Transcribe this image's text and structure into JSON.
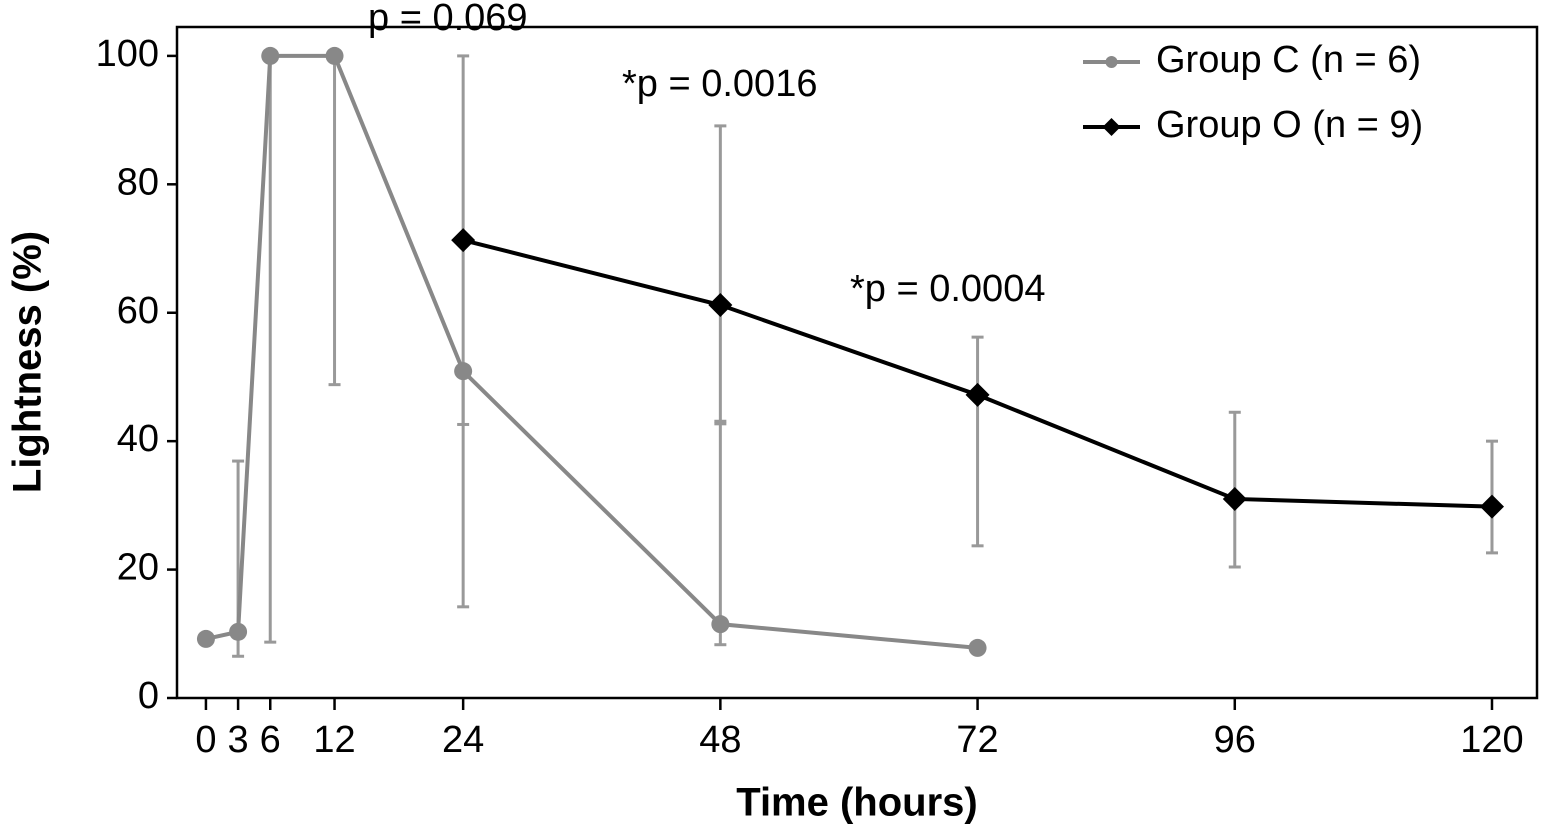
{
  "chart_data": {
    "type": "line",
    "xlabel": "Time (hours)",
    "ylabel": "Lightness (%)",
    "xlim": [
      -2.7,
      124.2
    ],
    "ylim": [
      0,
      104.5
    ],
    "xticks": [
      0,
      3,
      6,
      12,
      24,
      48,
      72,
      96,
      120
    ],
    "yticks": [
      0,
      20,
      40,
      60,
      80,
      100
    ],
    "legend": "upper right",
    "error_color": "#999999",
    "series": [
      {
        "name": "Group C (n = 6)",
        "color": "#888888",
        "marker": "circle",
        "x": [
          0,
          3,
          6,
          12,
          24,
          48,
          72
        ],
        "values": [
          9.2,
          10.3,
          100,
          100,
          50.9,
          11.5,
          7.8
        ],
        "lower": [
          null,
          6.5,
          8.7,
          48.8,
          14.2,
          8.3,
          null
        ],
        "upper": [
          null,
          36.9,
          100,
          100,
          50.9,
          42.7,
          null
        ]
      },
      {
        "name": "Group O (n = 9)",
        "color": "#000000",
        "marker": "diamond",
        "x": [
          24,
          48,
          72,
          96,
          120
        ],
        "values": [
          71.3,
          61.2,
          47.2,
          31.0,
          29.8
        ],
        "lower": [
          42.6,
          43.1,
          23.7,
          20.4,
          22.6
        ],
        "upper": [
          100,
          89.1,
          56.2,
          44.5,
          40.0
        ]
      }
    ],
    "annotations": [
      "p = 0.069",
      "*p = 0.0016",
      "*p = 0.0004"
    ]
  }
}
